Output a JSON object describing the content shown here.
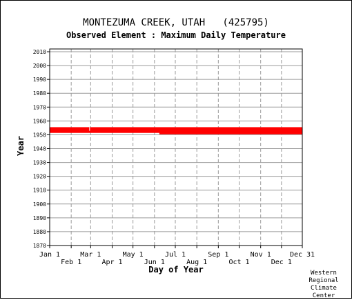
{
  "title": "MONTEZUMA CREEK, UTAH   (425795)",
  "subtitle": "Observed Element : Maximum Daily Temperature",
  "credit": [
    "Western",
    "Regional",
    "Climate",
    "Center"
  ],
  "chart_data": {
    "type": "bar",
    "xlabel": "Day of Year",
    "ylabel": "Year",
    "x_ticks_upper": [
      {
        "label": "Jan 1",
        "day": 1
      },
      {
        "label": "Mar 1",
        "day": 60
      },
      {
        "label": "May 1",
        "day": 121
      },
      {
        "label": "Jul 1",
        "day": 182
      },
      {
        "label": "Sep 1",
        "day": 244
      },
      {
        "label": "Nov 1",
        "day": 305
      },
      {
        "label": "Dec 31",
        "day": 365
      }
    ],
    "x_ticks_lower": [
      {
        "label": "Feb 1",
        "day": 32
      },
      {
        "label": "Apr 1",
        "day": 91
      },
      {
        "label": "Jun 1",
        "day": 152
      },
      {
        "label": "Aug 1",
        "day": 213
      },
      {
        "label": "Oct 1",
        "day": 274
      },
      {
        "label": "Dec 1",
        "day": 335
      }
    ],
    "xlim": [
      1,
      365
    ],
    "ylim": [
      1870,
      2012
    ],
    "y_ticks": [
      1870,
      1880,
      1890,
      1900,
      1910,
      1920,
      1930,
      1940,
      1950,
      1960,
      1970,
      1980,
      1990,
      2000,
      2010
    ],
    "grid": true,
    "bar_color": "#ff0000",
    "data_coverage": [
      {
        "year": 1951,
        "start_day": 159,
        "end_day": 365
      },
      {
        "year": 1952,
        "start_day": 1,
        "end_day": 365
      },
      {
        "year": 1953,
        "start_day": 1,
        "end_day": 365
      },
      {
        "year": 1954,
        "start_day": 1,
        "end_day": 365
      },
      {
        "year": 1955,
        "start_day": 1,
        "end_day": 365
      }
    ],
    "missing_marks": [
      {
        "year": 1954,
        "day": 58
      }
    ]
  }
}
